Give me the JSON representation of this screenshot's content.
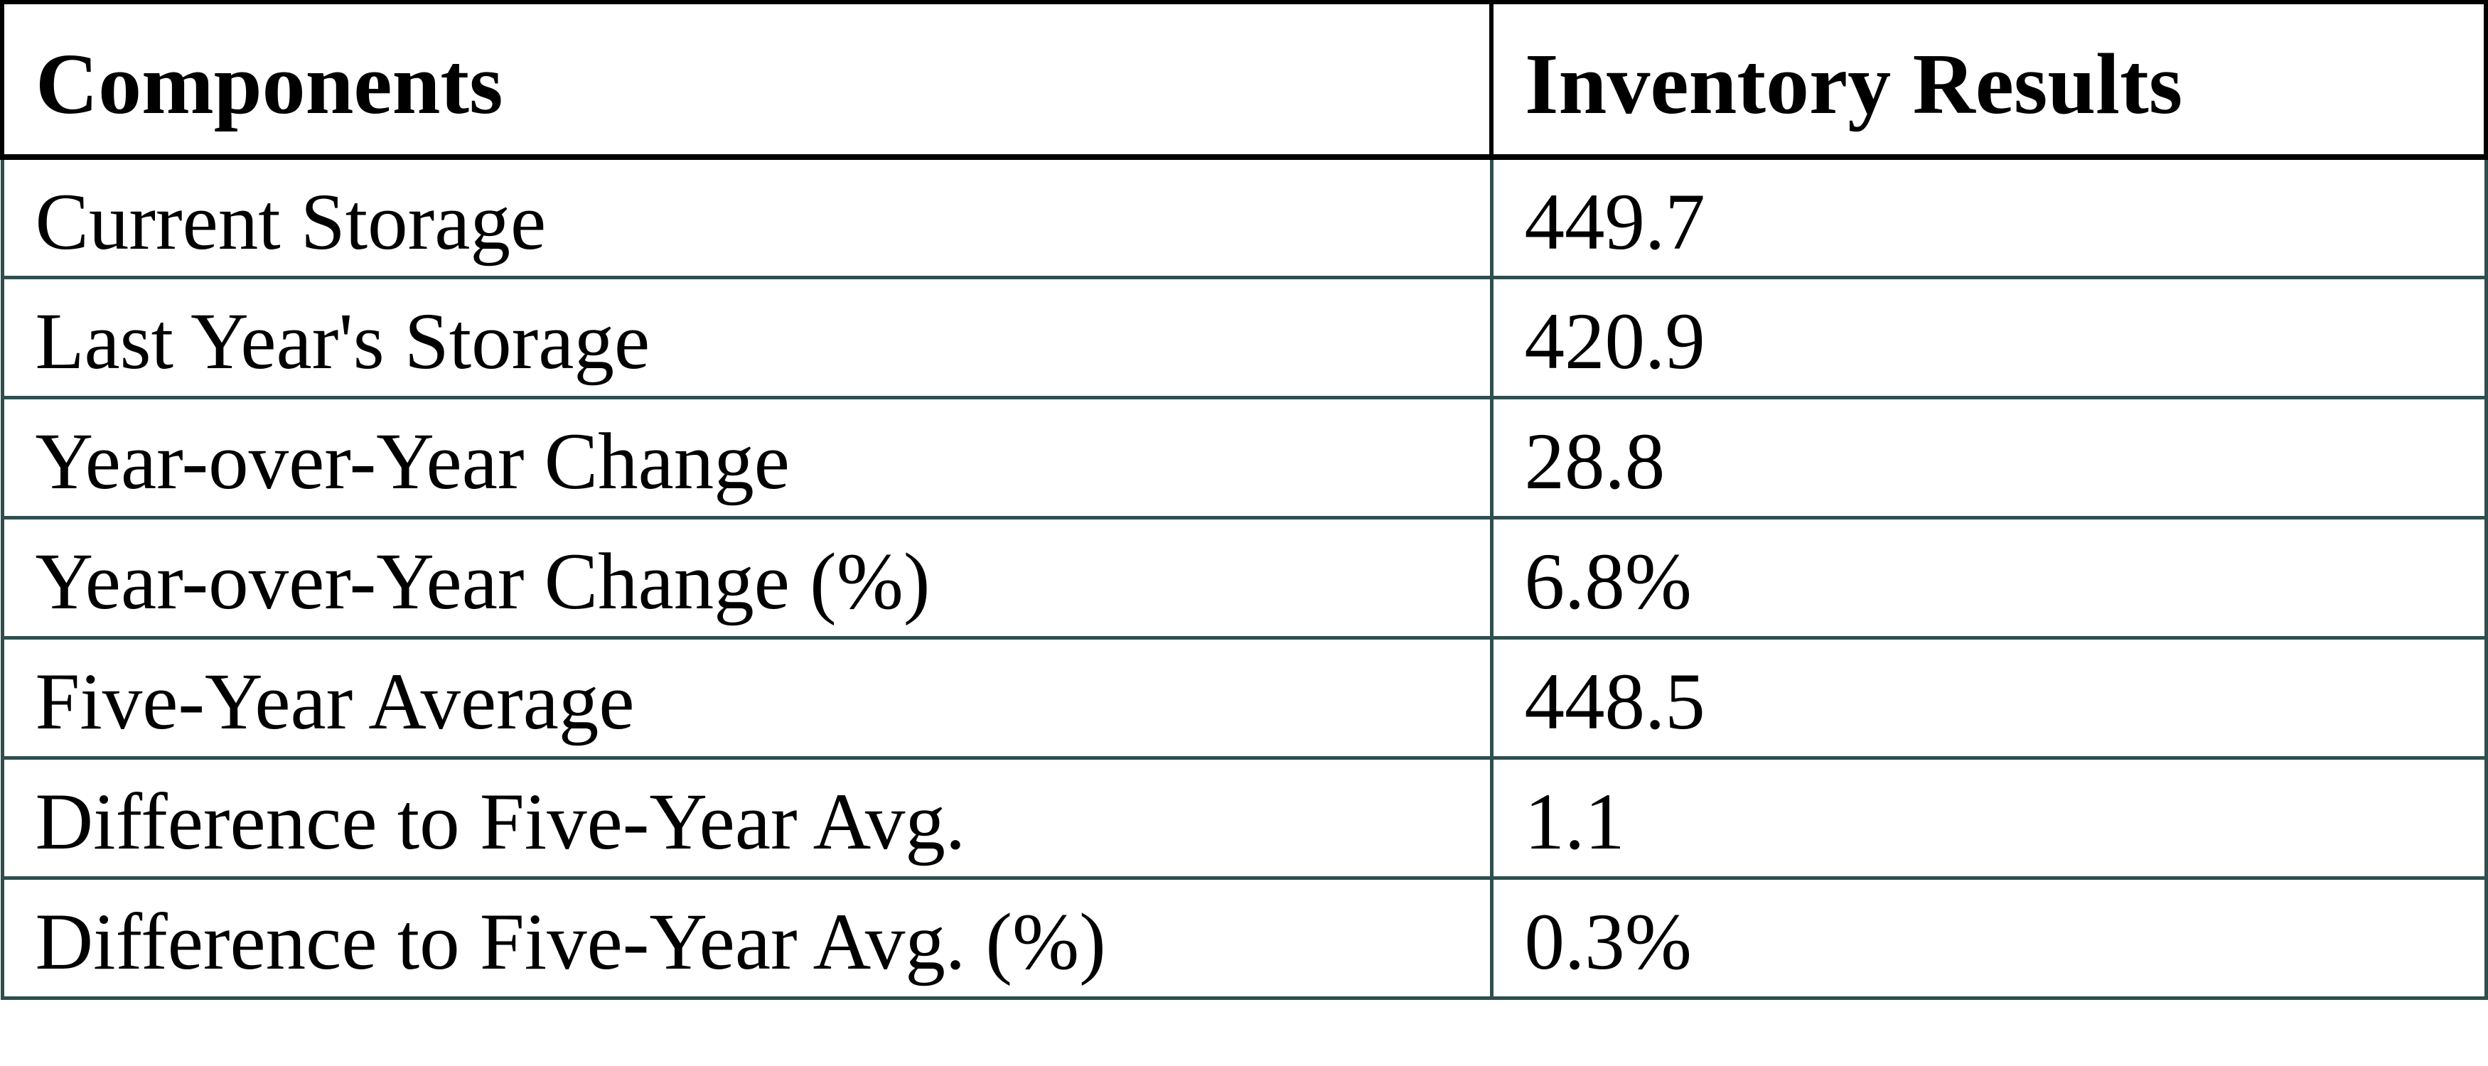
{
  "colors": {
    "background": "#ffffff",
    "text": "#000000",
    "header_border": "#000000",
    "body_border": "#2f4f4f"
  },
  "chart_data": {
    "type": "table",
    "title": "",
    "columns": [
      "Components",
      "Inventory Results"
    ],
    "rows": [
      [
        "Current Storage",
        "449.7"
      ],
      [
        "Last Year's Storage",
        "420.9"
      ],
      [
        "Year-over-Year Change",
        "28.8"
      ],
      [
        "Year-over-Year Change (%)",
        "6.8%"
      ],
      [
        "Five-Year Average",
        "448.5"
      ],
      [
        "Difference to Five-Year Avg.",
        "1.1"
      ],
      [
        "Difference to Five-Year Avg. (%)",
        "0.3%"
      ]
    ]
  }
}
